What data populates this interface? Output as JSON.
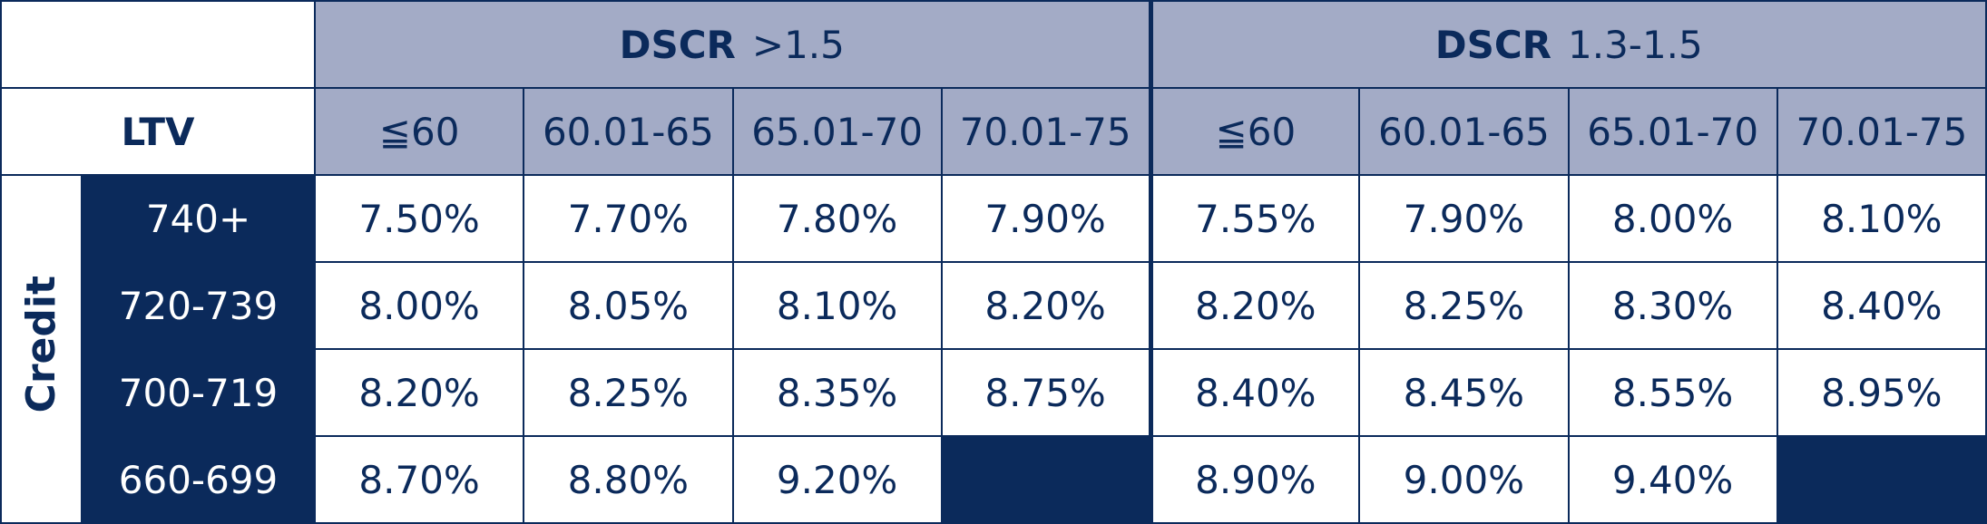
{
  "header": {
    "groups": [
      {
        "name": "DSCR",
        "range": ">1.5",
        "ltv_bands": [
          "≦60",
          "60.01-65",
          "65.01-70",
          "70.01-75"
        ]
      },
      {
        "name": "DSCR",
        "range": "1.3-1.5",
        "ltv_bands": [
          "≦60",
          "60.01-65",
          "65.01-70",
          "70.01-75"
        ]
      }
    ],
    "ltv_label": "LTV"
  },
  "table": {
    "credit_label": "Credit",
    "rows": [
      {
        "label": "740+",
        "rates": [
          "7.50%",
          "7.70%",
          "7.80%",
          "7.90%",
          "7.55%",
          "7.90%",
          "8.00%",
          "8.10%"
        ]
      },
      {
        "label": "720-739",
        "rates": [
          "8.00%",
          "8.05%",
          "8.10%",
          "8.20%",
          "8.20%",
          "8.25%",
          "8.30%",
          "8.40%"
        ]
      },
      {
        "label": "700-719",
        "rates": [
          "8.20%",
          "8.25%",
          "8.35%",
          "8.75%",
          "8.40%",
          "8.45%",
          "8.55%",
          "8.95%"
        ]
      },
      {
        "label": "660-699",
        "rates": [
          "8.70%",
          "8.80%",
          "9.20%",
          null,
          "8.90%",
          "9.00%",
          "9.40%",
          null
        ]
      }
    ]
  }
}
